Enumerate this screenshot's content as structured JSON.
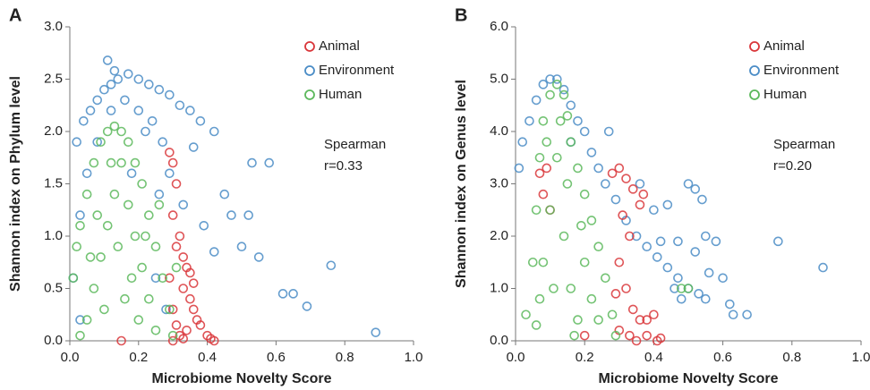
{
  "chart_data": [
    {
      "type": "scatter",
      "panel_label": "A",
      "x_label": "Microbiome Novelty Score",
      "y_label": "Shannon index on Phylum level",
      "annotation": [
        "Spearman",
        "r=0.33"
      ],
      "legend": "upper right",
      "xlim": [
        0,
        1.0
      ],
      "ylim": [
        0,
        3.0
      ],
      "xticks": [
        {
          "value": 0,
          "label": "0.0"
        },
        {
          "value": 0.2,
          "label": "0.2"
        },
        {
          "value": 0.4,
          "label": "0.4"
        },
        {
          "value": 0.6,
          "label": "0.6"
        },
        {
          "value": 0.8,
          "label": "0.8"
        },
        {
          "value": 1.0,
          "label": "1.0"
        }
      ],
      "yticks": [
        {
          "value": 0,
          "label": "0.0"
        },
        {
          "value": 0.5,
          "label": "0.5"
        },
        {
          "value": 1.0,
          "label": "1.0"
        },
        {
          "value": 1.5,
          "label": "1.5"
        },
        {
          "value": 2.0,
          "label": "2.0"
        },
        {
          "value": 2.5,
          "label": "2.5"
        },
        {
          "value": 3.0,
          "label": "3.0"
        }
      ],
      "series": [
        {
          "name": "Animal",
          "color": "#d9363a",
          "x": [
            0.29,
            0.3,
            0.31,
            0.3,
            0.32,
            0.33,
            0.34,
            0.35,
            0.33,
            0.3,
            0.31,
            0.32,
            0.34,
            0.36,
            0.38,
            0.4,
            0.42,
            0.41,
            0.29,
            0.31,
            0.35,
            0.37,
            0.3,
            0.33,
            0.15,
            0.36
          ],
          "y": [
            1.8,
            1.7,
            1.5,
            1.2,
            1.0,
            0.8,
            0.7,
            0.65,
            0.5,
            0.3,
            0.15,
            0.05,
            0.1,
            0.3,
            0.15,
            0.05,
            0.0,
            0.02,
            0.6,
            0.9,
            0.4,
            0.2,
            0.0,
            0.02,
            0.0,
            0.55
          ]
        },
        {
          "name": "Environment",
          "color": "#4a8cc6",
          "x": [
            0.02,
            0.04,
            0.06,
            0.08,
            0.1,
            0.12,
            0.14,
            0.17,
            0.2,
            0.23,
            0.26,
            0.29,
            0.32,
            0.35,
            0.38,
            0.42,
            0.11,
            0.13,
            0.18,
            0.22,
            0.26,
            0.29,
            0.33,
            0.36,
            0.39,
            0.42,
            0.45,
            0.47,
            0.5,
            0.53,
            0.55,
            0.58,
            0.62,
            0.65,
            0.69,
            0.76,
            0.89,
            0.01,
            0.03,
            0.52,
            0.05,
            0.08,
            0.12,
            0.16,
            0.2,
            0.24,
            0.27,
            0.25,
            0.28,
            0.03
          ],
          "y": [
            1.9,
            2.1,
            2.2,
            2.3,
            2.4,
            2.45,
            2.5,
            2.55,
            2.5,
            2.45,
            2.4,
            2.35,
            2.25,
            2.2,
            2.1,
            2.0,
            2.68,
            2.58,
            1.6,
            2.0,
            1.4,
            1.6,
            1.3,
            1.85,
            1.1,
            0.85,
            1.4,
            1.2,
            0.9,
            1.7,
            0.8,
            1.7,
            0.45,
            0.45,
            0.33,
            0.72,
            0.08,
            0.6,
            1.2,
            1.2,
            1.6,
            1.9,
            2.2,
            2.3,
            2.2,
            2.1,
            1.9,
            0.6,
            0.3,
            0.2
          ]
        },
        {
          "name": "Human",
          "color": "#5cb85c",
          "x": [
            0.01,
            0.02,
            0.03,
            0.05,
            0.07,
            0.09,
            0.11,
            0.13,
            0.15,
            0.17,
            0.19,
            0.21,
            0.23,
            0.25,
            0.27,
            0.29,
            0.3,
            0.05,
            0.07,
            0.09,
            0.11,
            0.13,
            0.15,
            0.17,
            0.19,
            0.21,
            0.23,
            0.25,
            0.03,
            0.08,
            0.12,
            0.16,
            0.2,
            0.1,
            0.14,
            0.18,
            0.22,
            0.06,
            0.26,
            0.31
          ],
          "y": [
            0.6,
            0.9,
            1.1,
            1.4,
            1.7,
            1.9,
            2.0,
            2.05,
            2.0,
            1.9,
            1.7,
            1.5,
            1.2,
            0.9,
            0.6,
            0.3,
            0.05,
            0.2,
            0.5,
            0.8,
            1.1,
            1.4,
            1.7,
            1.3,
            1.0,
            0.7,
            0.4,
            0.1,
            0.05,
            1.2,
            1.7,
            0.4,
            0.2,
            0.3,
            0.9,
            0.6,
            1.0,
            0.8,
            1.3,
            0.7
          ]
        }
      ]
    },
    {
      "type": "scatter",
      "panel_label": "B",
      "x_label": "Microbiome Novelty Score",
      "y_label": "Shannon index on Genus level",
      "annotation": [
        "Spearman",
        "r=0.20"
      ],
      "legend": "upper right",
      "xlim": [
        0,
        1.0
      ],
      "ylim": [
        0,
        6.0
      ],
      "xticks": [
        {
          "value": 0,
          "label": "0.0"
        },
        {
          "value": 0.2,
          "label": "0.2"
        },
        {
          "value": 0.4,
          "label": "0.4"
        },
        {
          "value": 0.6,
          "label": "0.6"
        },
        {
          "value": 0.8,
          "label": "0.8"
        },
        {
          "value": 1.0,
          "label": "1.0"
        }
      ],
      "yticks": [
        {
          "value": 0,
          "label": "0.0"
        },
        {
          "value": 1.0,
          "label": "1.0"
        },
        {
          "value": 2.0,
          "label": "2.0"
        },
        {
          "value": 3.0,
          "label": "3.0"
        },
        {
          "value": 4.0,
          "label": "4.0"
        },
        {
          "value": 5.0,
          "label": "5.0"
        },
        {
          "value": 6.0,
          "label": "6.0"
        }
      ],
      "series": [
        {
          "name": "Animal",
          "color": "#d9363a",
          "x": [
            0.07,
            0.08,
            0.09,
            0.1,
            0.28,
            0.3,
            0.32,
            0.34,
            0.36,
            0.31,
            0.33,
            0.3,
            0.32,
            0.34,
            0.36,
            0.38,
            0.4,
            0.3,
            0.33,
            0.35,
            0.38,
            0.41,
            0.42,
            0.29,
            0.37,
            0.2
          ],
          "y": [
            3.2,
            2.8,
            3.3,
            2.5,
            3.2,
            3.3,
            3.1,
            2.9,
            2.6,
            2.4,
            2.0,
            1.5,
            1.0,
            0.6,
            0.4,
            0.4,
            0.5,
            0.2,
            0.1,
            0.0,
            0.1,
            0.0,
            0.05,
            0.9,
            2.8,
            0.1
          ]
        },
        {
          "name": "Environment",
          "color": "#4a8cc6",
          "x": [
            0.01,
            0.02,
            0.04,
            0.06,
            0.08,
            0.1,
            0.12,
            0.14,
            0.16,
            0.18,
            0.2,
            0.22,
            0.24,
            0.26,
            0.29,
            0.32,
            0.35,
            0.38,
            0.41,
            0.44,
            0.47,
            0.5,
            0.53,
            0.55,
            0.4,
            0.42,
            0.44,
            0.47,
            0.5,
            0.52,
            0.54,
            0.55,
            0.58,
            0.6,
            0.62,
            0.63,
            0.67,
            0.76,
            0.89,
            0.52,
            0.46,
            0.56,
            0.48,
            0.36,
            0.27,
            0.16
          ],
          "y": [
            3.3,
            3.8,
            4.2,
            4.6,
            4.9,
            5.0,
            5.0,
            4.8,
            4.5,
            4.2,
            4.0,
            3.6,
            3.3,
            3.0,
            2.7,
            2.3,
            2.0,
            1.8,
            1.6,
            1.4,
            1.2,
            1.0,
            0.9,
            0.8,
            2.5,
            1.9,
            2.6,
            1.9,
            3.0,
            2.9,
            2.7,
            2.0,
            1.9,
            1.2,
            0.7,
            0.5,
            0.5,
            1.9,
            1.4,
            1.7,
            1.0,
            1.3,
            0.8,
            3.0,
            4.0,
            3.8
          ]
        },
        {
          "name": "Human",
          "color": "#5cb85c",
          "x": [
            0.03,
            0.05,
            0.06,
            0.07,
            0.08,
            0.1,
            0.12,
            0.14,
            0.15,
            0.16,
            0.18,
            0.2,
            0.22,
            0.24,
            0.26,
            0.28,
            0.29,
            0.06,
            0.08,
            0.1,
            0.12,
            0.14,
            0.16,
            0.18,
            0.2,
            0.22,
            0.09,
            0.13,
            0.11,
            0.15,
            0.19,
            0.24,
            0.07,
            0.17,
            0.48,
            0.5
          ],
          "y": [
            0.5,
            1.5,
            2.5,
            3.5,
            4.2,
            4.7,
            4.9,
            4.7,
            4.3,
            3.8,
            3.3,
            2.8,
            2.3,
            1.8,
            1.2,
            0.5,
            0.1,
            0.3,
            1.5,
            2.5,
            3.5,
            2.0,
            1.0,
            0.4,
            1.5,
            0.8,
            3.8,
            4.2,
            1.0,
            3.0,
            2.2,
            0.4,
            0.8,
            0.1,
            1.0,
            1.0
          ]
        }
      ]
    }
  ]
}
